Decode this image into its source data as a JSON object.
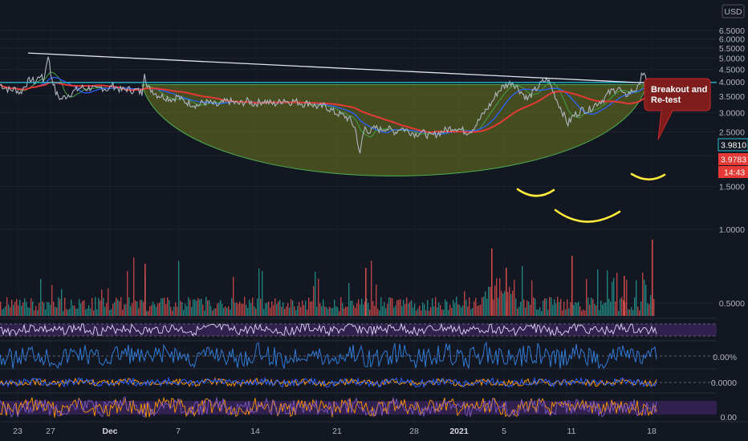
{
  "chart_data": {
    "type": "line",
    "currency": "USD",
    "y_scale": "log",
    "ylim": [
      0.45,
      7.0
    ],
    "y_ticks": [
      "6.5000",
      "6.0000",
      "5.5000",
      "5.0000",
      "4.5000",
      "4.0000",
      "3.5000",
      "3.0000",
      "2.5000",
      "2.0000",
      "1.5000",
      "1.0000",
      "0.5000"
    ],
    "x_ticks": [
      "23",
      "27",
      "Dec",
      "7",
      "14",
      "21",
      "28",
      "2021",
      "5",
      "11",
      "18"
    ],
    "x_ticks_bold": [
      "Dec",
      "2021"
    ],
    "price_series": {
      "name": "",
      "points": [
        [
          0,
          3.9
        ],
        [
          2,
          3.8
        ],
        [
          4,
          3.7
        ],
        [
          6,
          3.75
        ],
        [
          8,
          3.6
        ],
        [
          10,
          3.9
        ],
        [
          12,
          4.1
        ],
        [
          14,
          4.0
        ],
        [
          16,
          4.3
        ],
        [
          17,
          4.0
        ],
        [
          18,
          4.5
        ],
        [
          19,
          5.2
        ],
        [
          20,
          4.3
        ],
        [
          21,
          4.0
        ],
        [
          22,
          3.6
        ],
        [
          23,
          3.5
        ],
        [
          24,
          3.4
        ],
        [
          26,
          3.5
        ],
        [
          28,
          3.6
        ],
        [
          30,
          3.7
        ],
        [
          32,
          3.8
        ],
        [
          34,
          3.75
        ],
        [
          36,
          3.8
        ],
        [
          38,
          3.7
        ],
        [
          40,
          3.8
        ],
        [
          42,
          3.75
        ],
        [
          43,
          3.7
        ],
        [
          44,
          3.9
        ],
        [
          46,
          3.8
        ],
        [
          48,
          3.7
        ],
        [
          50,
          3.75
        ],
        [
          52,
          3.7
        ],
        [
          54,
          3.7
        ],
        [
          56,
          3.6
        ],
        [
          57,
          4.45
        ],
        [
          58,
          3.8
        ],
        [
          60,
          3.7
        ],
        [
          62,
          3.55
        ],
        [
          64,
          3.5
        ],
        [
          66,
          3.45
        ],
        [
          68,
          3.4
        ],
        [
          70,
          3.5
        ],
        [
          72,
          3.35
        ],
        [
          74,
          3.3
        ],
        [
          76,
          3.25
        ],
        [
          78,
          3.2
        ],
        [
          80,
          3.3
        ],
        [
          82,
          3.3
        ],
        [
          84,
          3.25
        ],
        [
          86,
          3.2
        ],
        [
          88,
          3.3
        ],
        [
          90,
          3.35
        ],
        [
          92,
          3.3
        ],
        [
          94,
          3.25
        ],
        [
          96,
          3.3
        ],
        [
          98,
          3.35
        ],
        [
          100,
          3.25
        ],
        [
          102,
          3.3
        ],
        [
          104,
          3.35
        ],
        [
          106,
          3.3
        ],
        [
          108,
          3.25
        ],
        [
          110,
          3.3
        ],
        [
          112,
          3.4
        ],
        [
          114,
          3.3
        ],
        [
          116,
          3.35
        ],
        [
          118,
          3.3
        ],
        [
          120,
          3.25
        ],
        [
          122,
          3.3
        ],
        [
          124,
          3.2
        ],
        [
          126,
          3.15
        ],
        [
          128,
          3.2
        ],
        [
          130,
          3.1
        ],
        [
          132,
          3.0
        ],
        [
          134,
          2.95
        ],
        [
          136,
          2.9
        ],
        [
          138,
          2.8
        ],
        [
          140,
          2.6
        ],
        [
          141,
          2.3
        ],
        [
          142,
          2.0
        ],
        [
          143,
          2.4
        ],
        [
          144,
          2.6
        ],
        [
          146,
          2.5
        ],
        [
          148,
          2.6
        ],
        [
          150,
          2.55
        ],
        [
          152,
          2.6
        ],
        [
          154,
          2.55
        ],
        [
          156,
          2.5
        ],
        [
          158,
          2.6
        ],
        [
          160,
          2.55
        ],
        [
          162,
          2.5
        ],
        [
          164,
          2.45
        ],
        [
          166,
          2.5
        ],
        [
          168,
          2.45
        ],
        [
          170,
          2.4
        ],
        [
          172,
          2.45
        ],
        [
          174,
          2.5
        ],
        [
          176,
          2.55
        ],
        [
          178,
          2.6
        ],
        [
          180,
          2.6
        ],
        [
          182,
          2.55
        ],
        [
          184,
          2.5
        ],
        [
          186,
          2.55
        ],
        [
          188,
          2.7
        ],
        [
          190,
          2.9
        ],
        [
          192,
          3.1
        ],
        [
          194,
          3.3
        ],
        [
          196,
          3.6
        ],
        [
          198,
          3.8
        ],
        [
          200,
          3.9
        ],
        [
          202,
          4.0
        ],
        [
          204,
          3.8
        ],
        [
          206,
          3.6
        ],
        [
          208,
          3.4
        ],
        [
          210,
          3.6
        ],
        [
          212,
          3.8
        ],
        [
          214,
          4.0
        ],
        [
          216,
          4.1
        ],
        [
          218,
          3.7
        ],
        [
          220,
          3.3
        ],
        [
          222,
          3.0
        ],
        [
          224,
          2.7
        ],
        [
          226,
          2.9
        ],
        [
          228,
          3.0
        ],
        [
          230,
          3.1
        ],
        [
          232,
          3.05
        ],
        [
          234,
          3.2
        ],
        [
          236,
          3.3
        ],
        [
          238,
          3.4
        ],
        [
          240,
          3.6
        ],
        [
          242,
          3.7
        ],
        [
          244,
          3.8
        ],
        [
          246,
          3.5
        ],
        [
          248,
          3.6
        ],
        [
          250,
          3.7
        ],
        [
          252,
          3.8
        ],
        [
          253,
          4.4
        ],
        [
          254,
          4.25
        ],
        [
          255,
          4.0
        ]
      ]
    },
    "trendline": {
      "from": [
        10,
        5.25
      ],
      "to": [
        270,
        3.85
      ]
    },
    "horizontal_level": 3.981,
    "price_labels": {
      "level": "3.9810",
      "last": "3.9783",
      "countdown": "14:43"
    },
    "cup_shape": {
      "left": [
        56,
        3.9
      ],
      "bottom": [
        141,
        1.95
      ],
      "right": [
        255,
        3.9
      ]
    },
    "annotations": [
      "Breakout and\nRe-test"
    ],
    "indicators": {
      "volume_axis_visible": false,
      "osc2_label": "0.00%",
      "osc3_label": "0.0000",
      "osc4_label": "0.00"
    },
    "colors": {
      "background": "#131722",
      "ma_red": "#e53935",
      "ma_blue": "#2962ff",
      "ma_green": "#43a047",
      "horizontal_line": "#26c6da",
      "cup_fill": "#6f7a1f",
      "cup_stroke": "#4caf50",
      "pattern_arcs": "#ffeb3b",
      "callout_fill": "#7f1d1d",
      "callout_stroke": "#c62828",
      "volume_up": "#26a69a",
      "volume_down": "#ef5350",
      "rsi_band": "#4a2a72"
    }
  },
  "ui": {
    "currency_badge": "USD",
    "callout_line1": "Breakout and",
    "callout_line2": "Re-test"
  }
}
